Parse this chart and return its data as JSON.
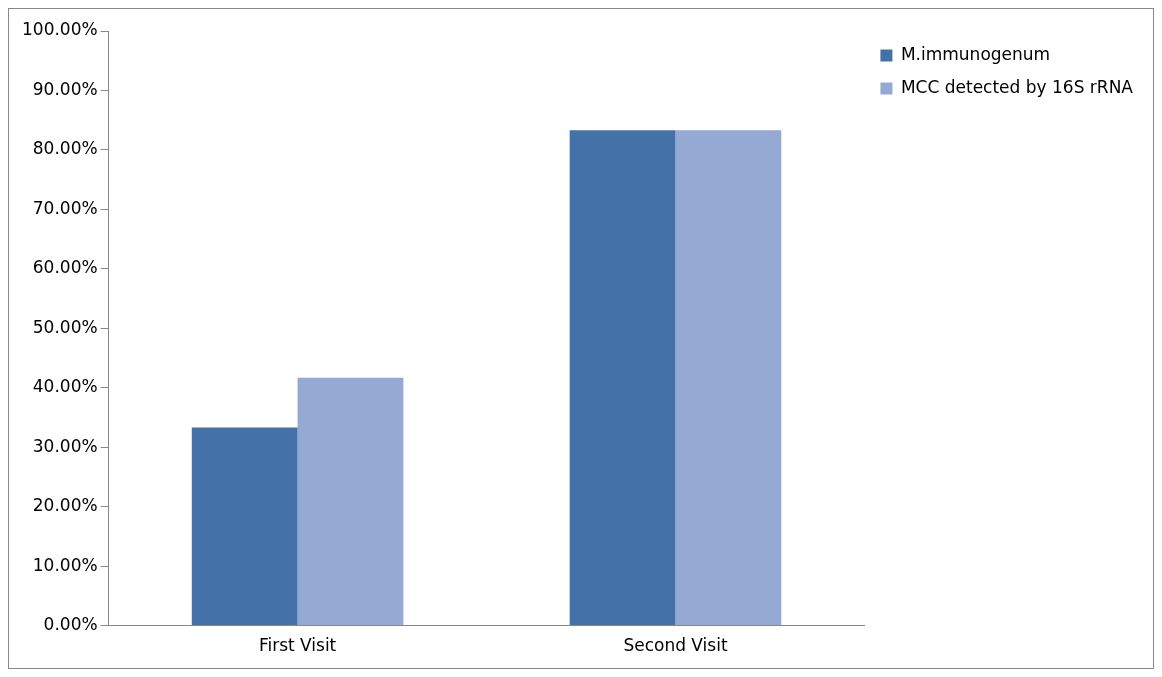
{
  "chart_data": {
    "type": "bar",
    "categories": [
      "First Visit",
      "Second Visit"
    ],
    "series": [
      {
        "name": "M.immunogenum",
        "color": "#4472a8",
        "values": [
          33.3,
          83.3
        ]
      },
      {
        "name": "MCC detected by 16S rRNA",
        "color": "#95aad2",
        "values": [
          41.7,
          83.3
        ]
      }
    ],
    "ylim": [
      0,
      100
    ],
    "yticks": [
      {
        "value": 0,
        "label": "0.00%"
      },
      {
        "value": 10,
        "label": "10.00%"
      },
      {
        "value": 20,
        "label": "20.00%"
      },
      {
        "value": 30,
        "label": "30.00%"
      },
      {
        "value": 40,
        "label": "40.00%"
      },
      {
        "value": 50,
        "label": "50.00%"
      },
      {
        "value": 60,
        "label": "60.00%"
      },
      {
        "value": 70,
        "label": "70.00%"
      },
      {
        "value": 80,
        "label": "80.00%"
      },
      {
        "value": 90,
        "label": "90.00%"
      },
      {
        "value": 100,
        "label": "100.00%"
      }
    ],
    "grid": false,
    "legend": "top right"
  }
}
